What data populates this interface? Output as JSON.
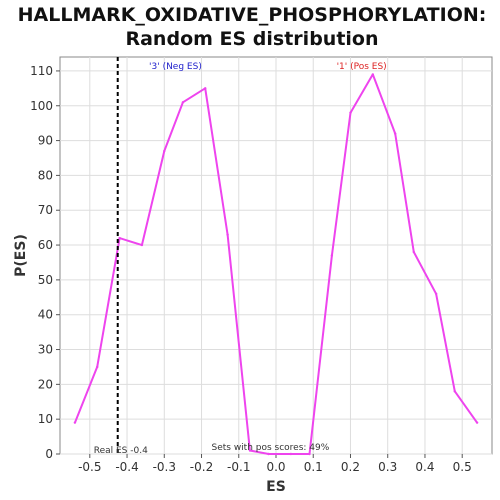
{
  "chart_data": {
    "type": "line",
    "title": [
      "HALLMARK_OXIDATIVE_PHOSPHORYLATION:",
      "Random ES distribution"
    ],
    "xlabel": "ES",
    "ylabel": "P(ES)",
    "xlim": [
      -0.58,
      0.58
    ],
    "ylim": [
      0,
      114
    ],
    "xticks": [
      "-0.5",
      "-0.4",
      "-0.3",
      "-0.2",
      "-0.1",
      "0.0",
      "0.1",
      "0.2",
      "0.3",
      "0.4",
      "0.5"
    ],
    "yticks": [
      "0",
      "10",
      "20",
      "30",
      "40",
      "50",
      "60",
      "70",
      "80",
      "90",
      "100",
      "110"
    ],
    "series": [
      {
        "color": "#ee44ee",
        "x": [
          -0.54,
          -0.48,
          -0.42,
          -0.36,
          -0.3,
          -0.25,
          -0.19,
          -0.13,
          -0.07,
          -0.02,
          0.04,
          0.09,
          0.15,
          0.2,
          0.26,
          0.32,
          0.37,
          0.43,
          0.48,
          0.54
        ],
        "y": [
          9,
          25,
          62,
          60,
          87,
          101,
          105,
          63,
          1,
          0,
          0,
          0,
          57,
          98,
          109,
          92,
          58,
          46,
          18,
          9
        ]
      }
    ],
    "annotations": {
      "neg_label": "'3' (Neg ES)",
      "pos_label": "'1' (Pos ES)",
      "real_es_label": "Real ES -0.4",
      "real_es_value": -0.425,
      "pos_scores_label": "Sets with pos scores: 49%"
    },
    "colors": {
      "neg": "#2222cc",
      "pos": "#dd2222",
      "line": "#ee44ee",
      "real_es": "#000000"
    },
    "grid": true,
    "legend": "none"
  }
}
